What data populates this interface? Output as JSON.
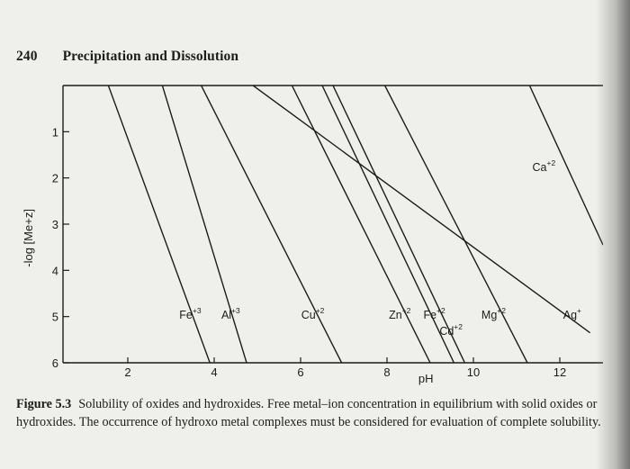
{
  "page": {
    "number": "240",
    "section_title": "Precipitation and Dissolution"
  },
  "caption": {
    "label": "Figure 5.3",
    "text": "Solubility of oxides and hydroxides. Free metal–ion concentration in equilibrium with solid oxides or hydroxides. The occurrence of hydroxo metal complexes must be considered for evaluation of complete solubility."
  },
  "chart_data": {
    "type": "line",
    "xlabel": "pH",
    "ylabel": "-log [Me+z]",
    "xlim": [
      0.5,
      13
    ],
    "ylim": [
      0,
      6
    ],
    "y_inverted": true,
    "xticks": [
      2,
      4,
      6,
      8,
      10,
      12
    ],
    "yticks": [
      1,
      2,
      3,
      4,
      5,
      6
    ],
    "series": [
      {
        "name": "Fe+3",
        "label_main": "Fe",
        "label_sup": "+3",
        "label_at": [
          3.7,
          4.95
        ],
        "points": [
          [
            1.55,
            0
          ],
          [
            3.9,
            6
          ]
        ]
      },
      {
        "name": "Al+3",
        "label_main": "Al",
        "label_sup": "+3",
        "label_at": [
          4.6,
          4.95
        ],
        "points": [
          [
            2.8,
            0
          ],
          [
            4.75,
            6
          ]
        ]
      },
      {
        "name": "Cu+2",
        "label_main": "Cu",
        "label_sup": "+2",
        "label_at": [
          6.55,
          4.95
        ],
        "points": [
          [
            3.7,
            0
          ],
          [
            6.95,
            6
          ]
        ]
      },
      {
        "name": "Zn+2",
        "label_main": "Zn",
        "label_sup": "+2",
        "label_at": [
          8.55,
          4.95
        ],
        "points": [
          [
            5.8,
            0
          ],
          [
            9.0,
            6
          ]
        ]
      },
      {
        "name": "Fe+2",
        "label_main": "Fe",
        "label_sup": "+2",
        "label_at": [
          9.35,
          4.95
        ],
        "points": [
          [
            6.5,
            0
          ],
          [
            9.55,
            6
          ]
        ]
      },
      {
        "name": "Cd+2",
        "label_main": "Cd",
        "label_sup": "+2",
        "label_at": [
          9.75,
          5.3
        ],
        "points": [
          [
            6.75,
            0
          ],
          [
            9.8,
            6
          ]
        ]
      },
      {
        "name": "Mg+2",
        "label_main": "Mg",
        "label_sup": "+2",
        "label_at": [
          10.75,
          4.95
        ],
        "points": [
          [
            7.95,
            0
          ],
          [
            11.25,
            6
          ]
        ]
      },
      {
        "name": "Ag+",
        "label_main": "Ag",
        "label_sup": "+",
        "label_at": [
          12.5,
          4.95
        ],
        "points": [
          [
            4.9,
            0
          ],
          [
            12.7,
            5.35
          ]
        ]
      },
      {
        "name": "Ca+2",
        "label_main": "Ca",
        "label_sup": "+2",
        "label_at": [
          11.9,
          1.75
        ],
        "points": [
          [
            11.3,
            0
          ],
          [
            13,
            3.45
          ]
        ]
      }
    ]
  }
}
